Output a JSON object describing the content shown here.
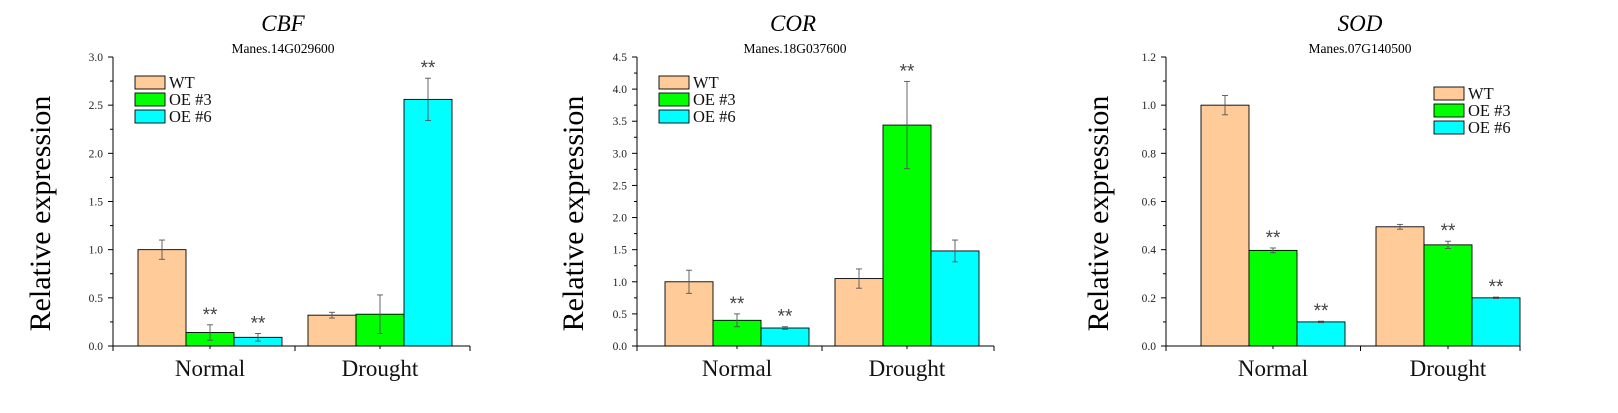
{
  "chart_data": [
    {
      "type": "bar",
      "title": "CBF",
      "subtitle": "Manes.14G029600",
      "ylabel": "Relative expression",
      "xlabel": "",
      "ylim": [
        0,
        3.0
      ],
      "yticks": [
        "0.0",
        "0.5",
        "1.0",
        "1.5",
        "2.0",
        "2.5",
        "3.0"
      ],
      "categories": [
        "Normal",
        "Drought"
      ],
      "series": [
        {
          "name": "WT",
          "color": "#FFCC99",
          "values": [
            1.0,
            0.32
          ],
          "errors": [
            0.1,
            0.03
          ],
          "sig": [
            "",
            ""
          ]
        },
        {
          "name": "OE #3",
          "color": "#00FF00",
          "values": [
            0.14,
            0.33
          ],
          "errors": [
            0.08,
            0.2
          ],
          "sig": [
            "**",
            ""
          ]
        },
        {
          "name": "OE #6",
          "color": "#00FFFF",
          "values": [
            0.09,
            2.56
          ],
          "errors": [
            0.04,
            0.22
          ],
          "sig": [
            "**",
            "**"
          ]
        }
      ],
      "legend_position": "top-left",
      "grid": false
    },
    {
      "type": "bar",
      "title": "COR",
      "subtitle": "Manes.18G037600",
      "ylabel": "Relative expression",
      "xlabel": "",
      "ylim": [
        0,
        4.5
      ],
      "yticks": [
        "0.0",
        "0.5",
        "1.0",
        "1.5",
        "2.0",
        "2.5",
        "3.0",
        "3.5",
        "4.0",
        "4.5"
      ],
      "categories": [
        "Normal",
        "Drought"
      ],
      "series": [
        {
          "name": "WT",
          "color": "#FFCC99",
          "values": [
            1.0,
            1.05
          ],
          "errors": [
            0.18,
            0.15
          ],
          "sig": [
            "",
            ""
          ]
        },
        {
          "name": "OE #3",
          "color": "#00FF00",
          "values": [
            0.4,
            3.44
          ],
          "errors": [
            0.1,
            0.68
          ],
          "sig": [
            "**",
            "**"
          ]
        },
        {
          "name": "OE #6",
          "color": "#00FFFF",
          "values": [
            0.28,
            1.48
          ],
          "errors": [
            0.02,
            0.17
          ],
          "sig": [
            "**",
            ""
          ]
        }
      ],
      "legend_position": "top-left",
      "grid": false
    },
    {
      "type": "bar",
      "title": "SOD",
      "subtitle": "Manes.07G140500",
      "ylabel": "Relative expression",
      "xlabel": "",
      "ylim": [
        0,
        1.2
      ],
      "yticks": [
        "0.0",
        "0.2",
        "0.4",
        "0.6",
        "0.8",
        "1.0",
        "1.2"
      ],
      "categories": [
        "Normal",
        "Drought"
      ],
      "series": [
        {
          "name": "WT",
          "color": "#FFCC99",
          "values": [
            1.0,
            0.495
          ],
          "errors": [
            0.04,
            0.01
          ],
          "sig": [
            "",
            ""
          ]
        },
        {
          "name": "OE #3",
          "color": "#00FF00",
          "values": [
            0.397,
            0.42
          ],
          "errors": [
            0.01,
            0.015
          ],
          "sig": [
            "**",
            "**"
          ]
        },
        {
          "name": "OE #6",
          "color": "#00FFFF",
          "values": [
            0.1,
            0.2
          ],
          "errors": [
            0.003,
            0.003
          ],
          "sig": [
            "**",
            "**"
          ]
        }
      ],
      "legend_position": "top-right",
      "grid": false
    }
  ]
}
